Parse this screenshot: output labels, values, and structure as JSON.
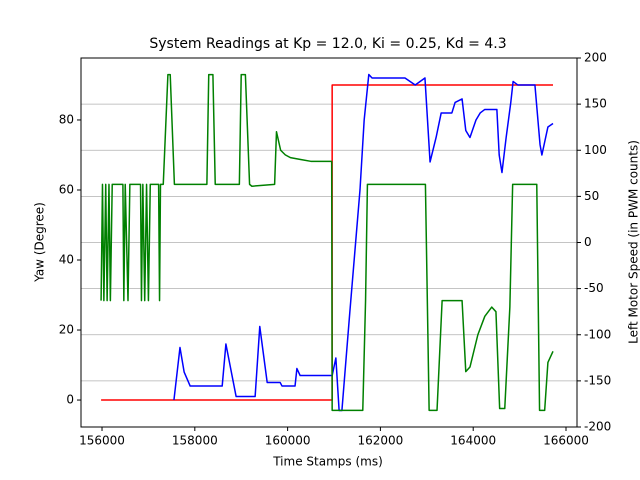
{
  "chart_data": {
    "type": "line",
    "title": "System Readings at Kp = 12.0, Ki = 0.25, Kd = 4.3",
    "xlabel": "Time Stamps (ms)",
    "ylabel": "Yaw (Degree)",
    "y2label": "Left Motor Speed (in PWM counts)",
    "xlim": [
      155547,
      166237
    ],
    "xticks": [
      156000,
      158000,
      160000,
      162000,
      164000,
      166000
    ],
    "ylim": [
      -7.7,
      97.7
    ],
    "yticks": [
      0,
      20,
      40,
      60,
      80
    ],
    "y2lim": [
      -200,
      200
    ],
    "y2ticks": [
      -200,
      -150,
      -100,
      -50,
      0,
      50,
      100,
      150,
      200
    ],
    "grid": "y2",
    "series": [
      {
        "color": "#ff0000",
        "axis": "y",
        "x": [
          155980,
          160960,
          160960,
          165720
        ],
        "values": [
          0,
          0,
          90,
          90
        ]
      },
      {
        "color": "#0000ff",
        "axis": "y",
        "x": [
          157550,
          157680,
          157770,
          157900,
          158590,
          158670,
          158890,
          159300,
          159400,
          159560,
          159840,
          159880,
          160160,
          160200,
          160270,
          160960,
          161040,
          161110,
          161170,
          161340,
          161560,
          161650,
          161750,
          161820,
          162530,
          162750,
          162960,
          163070,
          163200,
          163310,
          163540,
          163610,
          163760,
          163840,
          163930,
          164060,
          164150,
          164250,
          164510,
          164560,
          164620,
          164710,
          164810,
          164860,
          164960,
          165330,
          165440,
          165480,
          165610,
          165720
        ],
        "values": [
          0,
          15,
          8,
          4,
          4,
          16,
          1,
          1,
          21,
          5,
          5,
          4,
          4,
          9,
          7,
          7,
          12,
          -3,
          -3,
          25,
          60,
          80,
          93,
          92,
          92,
          90,
          92,
          68,
          75,
          82,
          82,
          85,
          86,
          77,
          75,
          80,
          82,
          83,
          83,
          70,
          65,
          75,
          85,
          91,
          90,
          90,
          73,
          70,
          78,
          79
        ]
      },
      {
        "color": "#008000",
        "axis": "y2",
        "x": [
          155980,
          156010,
          156040,
          156080,
          156110,
          156150,
          156180,
          156220,
          156450,
          156470,
          156500,
          156560,
          156600,
          156830,
          156850,
          156880,
          156920,
          156960,
          157000,
          157040,
          157220,
          157240,
          157260,
          157320,
          157420,
          157470,
          157560,
          158260,
          158300,
          158390,
          158440,
          158960,
          159000,
          159090,
          159180,
          159230,
          159720,
          159760,
          159850,
          159950,
          160060,
          160280,
          160500,
          160950,
          160960,
          161620,
          161680,
          161720,
          162970,
          163050,
          163220,
          163330,
          163760,
          163840,
          163930,
          164100,
          164250,
          164400,
          164490,
          164570,
          164680,
          164790,
          164850,
          165370,
          165430,
          165540,
          165610,
          165720
        ],
        "values": [
          -63,
          63,
          -63,
          63,
          -63,
          63,
          -63,
          63,
          63,
          -63,
          63,
          -63,
          63,
          63,
          -63,
          63,
          -63,
          63,
          -63,
          63,
          63,
          -63,
          63,
          63,
          182,
          182,
          63,
          63,
          182,
          182,
          63,
          63,
          182,
          182,
          63,
          61,
          63,
          120,
          100,
          95,
          92,
          90,
          88,
          88,
          -182,
          -182,
          -63,
          63,
          63,
          -182,
          -182,
          -63,
          -63,
          -140,
          -135,
          -100,
          -80,
          -70,
          -75,
          -180,
          -180,
          -70,
          63,
          63,
          -182,
          -182,
          -130,
          -118
        ]
      }
    ]
  }
}
